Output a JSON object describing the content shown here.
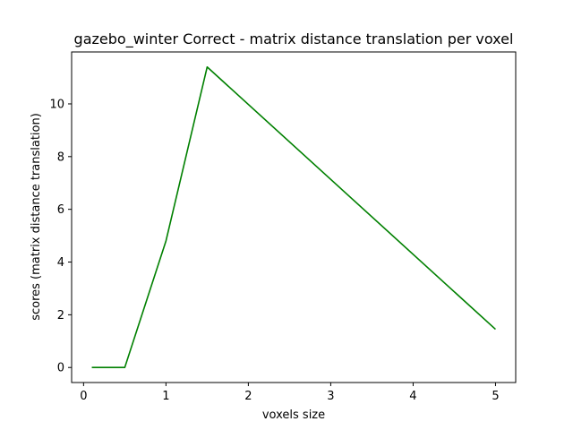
{
  "chart_data": {
    "type": "line",
    "title": "gazebo_winter Correct - matrix distance translation per voxel",
    "xlabel": "voxels size",
    "ylabel": "scores (matrix distance translation)",
    "xlim": [
      -0.145,
      5.245
    ],
    "ylim": [
      -0.57,
      11.97
    ],
    "xticks": [
      0,
      1,
      2,
      3,
      4,
      5
    ],
    "yticks": [
      0,
      2,
      4,
      6,
      8,
      10
    ],
    "xtick_labels": [
      "0",
      "1",
      "2",
      "3",
      "4",
      "5"
    ],
    "ytick_labels": [
      "0",
      "2",
      "4",
      "6",
      "8",
      "10"
    ],
    "grid": false,
    "series": [
      {
        "color": "#008000",
        "x": [
          0.1,
          0.5,
          1.0,
          1.5,
          5.0
        ],
        "y": [
          0.0,
          0.0,
          4.8,
          11.4,
          1.45
        ]
      }
    ]
  }
}
